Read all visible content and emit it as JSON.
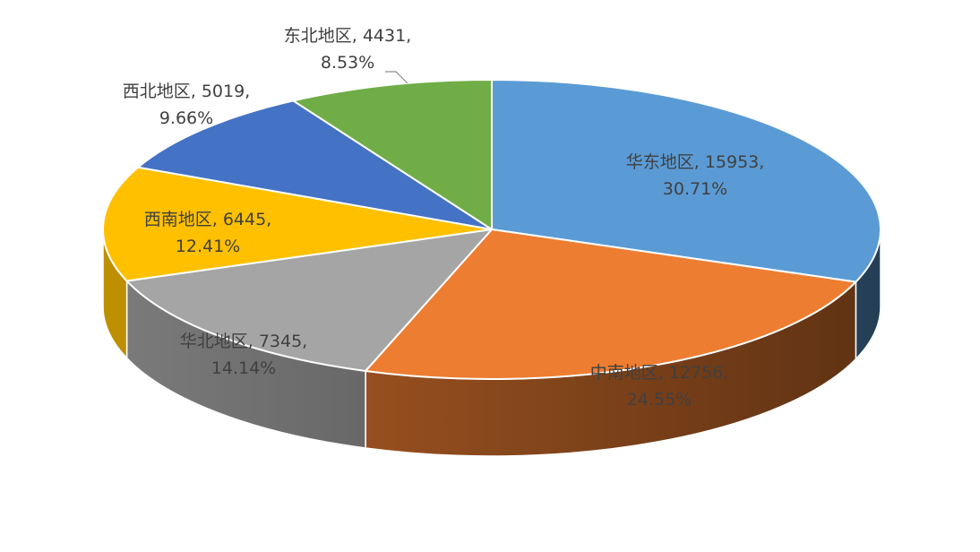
{
  "chart_data": {
    "type": "pie",
    "title": "",
    "categories": [
      "华东地区",
      "中南地区",
      "华北地区",
      "西南地区",
      "西北地区",
      "东北地区"
    ],
    "values": [
      15953,
      12756,
      7345,
      6445,
      5019,
      4431
    ],
    "percents": [
      "30.71%",
      "24.55%",
      "14.14%",
      "12.41%",
      "9.66%",
      "8.53%"
    ],
    "labels": [
      {
        "line1": "华东地区, 15953,",
        "line2": "30.71%"
      },
      {
        "line1": "中南地区, 12756,",
        "line2": "24.55%"
      },
      {
        "line1": "华北地区, 7345,",
        "line2": "14.14%"
      },
      {
        "line1": "西南地区, 6445,",
        "line2": "12.41%"
      },
      {
        "line1": "西北地区, 5019,",
        "line2": "9.66%"
      },
      {
        "line1": "东北地区, 4431,",
        "line2": "8.53%"
      }
    ],
    "colors": [
      "#5B9BD5",
      "#ED7D31",
      "#A5A5A5",
      "#FFC000",
      "#4472C4",
      "#70AD47"
    ],
    "legend": "none",
    "style": "3d-pie"
  }
}
